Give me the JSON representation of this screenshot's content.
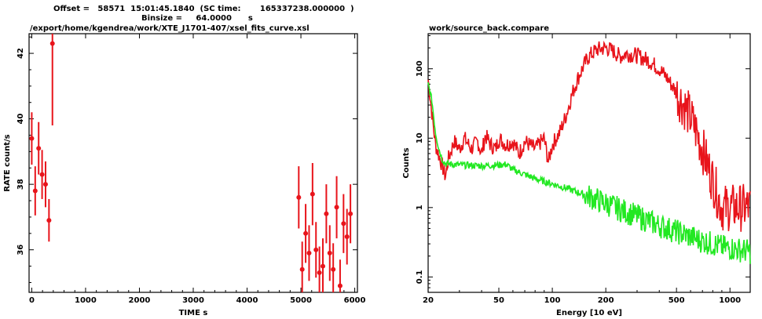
{
  "left_header": {
    "line1": "Offset =   58571  15:01:45.1840  (SC time:       165337238.000000  )",
    "line2": "Binsize =     64.0000      s",
    "path": "/export/home/kgendrea/work/XTE_J1701-407/xsel_fits_curve.xsl"
  },
  "right_header": {
    "title": "work/source_back.compare"
  },
  "chart_data": [
    {
      "type": "scatter",
      "title": "",
      "xlabel": "TIME   s",
      "ylabel": "RATE   count/s",
      "xlim": [
        -50,
        6050
      ],
      "ylim": [
        34.7,
        42.6
      ],
      "x_ticks": [
        0,
        1000,
        2000,
        3000,
        4000,
        5000,
        6000
      ],
      "y_ticks": [
        36,
        38,
        40,
        42
      ],
      "color": "#e8141b",
      "series": [
        {
          "points": [
            {
              "x": 0,
              "y": 39.4,
              "err": 0.8
            },
            {
              "x": 64,
              "y": 37.8,
              "err": 0.75
            },
            {
              "x": 128,
              "y": 39.1,
              "err": 0.8
            },
            {
              "x": 192,
              "y": 38.3,
              "err": 0.75
            },
            {
              "x": 256,
              "y": 38.0,
              "err": 0.7
            },
            {
              "x": 320,
              "y": 36.9,
              "err": 0.65
            },
            {
              "x": 384,
              "y": 42.3,
              "err": 2.5
            },
            {
              "x": 4960,
              "y": 37.6,
              "err": 0.95
            },
            {
              "x": 5024,
              "y": 35.4,
              "err": 0.85
            },
            {
              "x": 5088,
              "y": 36.5,
              "err": 0.9
            },
            {
              "x": 5152,
              "y": 35.9,
              "err": 0.85
            },
            {
              "x": 5216,
              "y": 37.7,
              "err": 0.95
            },
            {
              "x": 5280,
              "y": 36.0,
              "err": 0.85
            },
            {
              "x": 5344,
              "y": 35.3,
              "err": 0.8
            },
            {
              "x": 5408,
              "y": 35.5,
              "err": 0.85
            },
            {
              "x": 5472,
              "y": 37.1,
              "err": 0.9
            },
            {
              "x": 5536,
              "y": 35.9,
              "err": 0.85
            },
            {
              "x": 5600,
              "y": 35.4,
              "err": 0.8
            },
            {
              "x": 5664,
              "y": 37.3,
              "err": 0.95
            },
            {
              "x": 5728,
              "y": 34.9,
              "err": 0.8
            },
            {
              "x": 5792,
              "y": 36.8,
              "err": 0.9
            },
            {
              "x": 5856,
              "y": 36.4,
              "err": 0.85
            },
            {
              "x": 5920,
              "y": 37.1,
              "err": 0.9
            }
          ]
        }
      ]
    },
    {
      "type": "line",
      "title": "work/source_back.compare",
      "xlabel": "Energy [10 eV]",
      "ylabel": "Counts",
      "x_scale": "log",
      "y_scale": "log",
      "xlim": [
        20,
        1300
      ],
      "ylim": [
        0.06,
        320
      ],
      "x_ticks": [
        20,
        50,
        100,
        200,
        500,
        1000
      ],
      "y_ticks": [
        0.1,
        1,
        10,
        100
      ],
      "y_tick_labels": [
        "0.1",
        "1",
        "10",
        "100"
      ],
      "series": [
        {
          "color": "#e8141b",
          "points": [
            [
              20,
              70
            ],
            [
              22,
              8
            ],
            [
              24,
              4
            ],
            [
              25,
              2.8
            ],
            [
              26,
              5
            ],
            [
              28,
              9
            ],
            [
              30,
              7
            ],
            [
              32,
              10
            ],
            [
              35,
              7
            ],
            [
              38,
              9
            ],
            [
              40,
              6
            ],
            [
              42,
              11
            ],
            [
              45,
              8
            ],
            [
              48,
              7
            ],
            [
              50,
              10
            ],
            [
              55,
              8
            ],
            [
              60,
              9
            ],
            [
              65,
              6
            ],
            [
              70,
              9
            ],
            [
              80,
              7
            ],
            [
              90,
              10
            ],
            [
              95,
              4.5
            ],
            [
              100,
              8
            ],
            [
              105,
              10
            ],
            [
              110,
              12
            ],
            [
              120,
              22
            ],
            [
              130,
              45
            ],
            [
              140,
              75
            ],
            [
              150,
              110
            ],
            [
              160,
              150
            ],
            [
              170,
              170
            ],
            [
              180,
              190
            ],
            [
              200,
              200
            ],
            [
              220,
              180
            ],
            [
              240,
              150
            ],
            [
              260,
              165
            ],
            [
              280,
              160
            ],
            [
              300,
              155
            ],
            [
              350,
              130
            ],
            [
              400,
              100
            ],
            [
              450,
              70
            ],
            [
              500,
              45
            ],
            [
              550,
              30
            ],
            [
              600,
              20
            ],
            [
              650,
              12
            ],
            [
              700,
              7
            ],
            [
              750,
              4
            ],
            [
              800,
              2.5
            ],
            [
              850,
              1.5
            ],
            [
              900,
              1
            ],
            [
              1000,
              1
            ],
            [
              1100,
              1
            ],
            [
              1200,
              1
            ],
            [
              1300,
              1
            ]
          ]
        },
        {
          "color": "#22e822",
          "points": [
            [
              20,
              60
            ],
            [
              21,
              35
            ],
            [
              22,
              12
            ],
            [
              23,
              7
            ],
            [
              24,
              5
            ],
            [
              25,
              4.3
            ],
            [
              30,
              4.1
            ],
            [
              40,
              4.0
            ],
            [
              50,
              4.1
            ],
            [
              55,
              4.2
            ],
            [
              60,
              3.5
            ],
            [
              70,
              3.0
            ],
            [
              80,
              2.6
            ],
            [
              100,
              2.2
            ],
            [
              120,
              1.9
            ],
            [
              150,
              1.55
            ],
            [
              200,
              1.15
            ],
            [
              250,
              0.9
            ],
            [
              300,
              0.75
            ],
            [
              400,
              0.55
            ],
            [
              500,
              0.45
            ],
            [
              600,
              0.38
            ],
            [
              700,
              0.33
            ],
            [
              800,
              0.3
            ],
            [
              900,
              0.27
            ],
            [
              1000,
              0.26
            ],
            [
              1100,
              0.25
            ],
            [
              1200,
              0.24
            ],
            [
              1300,
              0.23
            ]
          ]
        }
      ]
    }
  ]
}
